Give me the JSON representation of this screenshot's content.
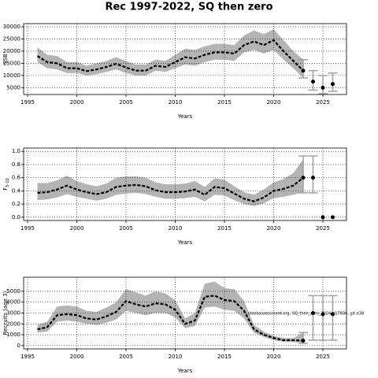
{
  "title": "Rec 1997-2022, SQ then zero",
  "footnote": "stockassessment.org, SQ_then_zero_2024, r17934, git:e38",
  "chart_data": [
    {
      "type": "line",
      "ylabel": "SSB",
      "xlabel": "Years",
      "grid": true,
      "line_color": "#000000",
      "band_color": "#b4b4b4",
      "bar_color": "#a0a0a0",
      "xlim": [
        1994.6,
        2027.4
      ],
      "xticks": [
        1995,
        2000,
        2005,
        2010,
        2015,
        2020,
        2025
      ],
      "ylim": [
        2200,
        31300
      ],
      "yticks": [
        5000,
        10000,
        15000,
        20000,
        25000,
        30000
      ],
      "x": [
        1996,
        1997,
        1998,
        1999,
        2000,
        2001,
        2002,
        2003,
        2004,
        2005,
        2006,
        2007,
        2008,
        2009,
        2010,
        2011,
        2012,
        2013,
        2014,
        2015,
        2016,
        2017,
        2018,
        2019,
        2020,
        2021,
        2022,
        2023
      ],
      "values": [
        18000,
        15500,
        15000,
        13000,
        13000,
        11800,
        12500,
        13500,
        14800,
        13300,
        12000,
        12000,
        14000,
        13500,
        15500,
        17500,
        17000,
        18500,
        19500,
        19500,
        19000,
        22500,
        24000,
        22500,
        24500,
        20000,
        16000,
        12000
      ],
      "upper": [
        21500,
        18500,
        18000,
        15500,
        15500,
        14000,
        15000,
        16000,
        17500,
        16000,
        14500,
        14500,
        16500,
        16000,
        18500,
        21000,
        20500,
        22000,
        23000,
        23000,
        22500,
        26500,
        28500,
        27000,
        29000,
        24500,
        20000,
        16500
      ],
      "lower": [
        15500,
        13000,
        12500,
        11000,
        11000,
        10000,
        10500,
        11500,
        12500,
        11000,
        10000,
        10000,
        12000,
        11500,
        13000,
        14500,
        14000,
        15500,
        16500,
        16500,
        16000,
        19500,
        20500,
        19000,
        20500,
        16500,
        13000,
        9000
      ],
      "projection": {
        "x": [
          2023,
          2024,
          2025,
          2026
        ],
        "values": [
          12000,
          7500,
          5000,
          6500
        ],
        "lower": [
          9000,
          4000,
          2500,
          3500
        ],
        "upper": [
          16500,
          12000,
          10000,
          11000
        ]
      }
    },
    {
      "type": "line",
      "ylabel": "F",
      "ylabel_sub": "5-10",
      "xlabel": "Years",
      "grid": true,
      "line_color": "#000000",
      "band_color": "#b4b4b4",
      "bar_color": "#a0a0a0",
      "xlim": [
        1994.6,
        2027.4
      ],
      "xticks": [
        1995,
        2000,
        2005,
        2010,
        2015,
        2020,
        2025
      ],
      "ylim": [
        -0.05,
        1.05
      ],
      "yticks": [
        {
          "value": 0,
          "label": "0.0"
        },
        0.2,
        0.4,
        0.6,
        0.8,
        {
          "value": 1,
          "label": "1.0"
        }
      ],
      "x": [
        1996,
        1997,
        1998,
        1999,
        2000,
        2001,
        2002,
        2003,
        2004,
        2005,
        2006,
        2007,
        2008,
        2009,
        2010,
        2011,
        2012,
        2013,
        2014,
        2015,
        2016,
        2017,
        2018,
        2019,
        2020,
        2021,
        2022,
        2023
      ],
      "values": [
        0.37,
        0.38,
        0.42,
        0.48,
        0.42,
        0.38,
        0.35,
        0.38,
        0.46,
        0.48,
        0.49,
        0.47,
        0.41,
        0.38,
        0.38,
        0.39,
        0.42,
        0.34,
        0.46,
        0.44,
        0.36,
        0.28,
        0.24,
        0.3,
        0.4,
        0.43,
        0.48,
        0.6
      ],
      "upper": [
        0.52,
        0.52,
        0.56,
        0.63,
        0.55,
        0.5,
        0.47,
        0.51,
        0.6,
        0.62,
        0.62,
        0.6,
        0.53,
        0.5,
        0.5,
        0.51,
        0.55,
        0.46,
        0.59,
        0.57,
        0.47,
        0.38,
        0.34,
        0.42,
        0.53,
        0.58,
        0.67,
        0.88
      ],
      "lower": [
        0.26,
        0.27,
        0.3,
        0.35,
        0.31,
        0.28,
        0.25,
        0.28,
        0.34,
        0.36,
        0.37,
        0.35,
        0.31,
        0.28,
        0.28,
        0.29,
        0.31,
        0.24,
        0.34,
        0.33,
        0.26,
        0.2,
        0.17,
        0.21,
        0.29,
        0.31,
        0.34,
        0.38
      ],
      "projection": {
        "x": [
          2023,
          2024,
          2025,
          2026
        ],
        "values": [
          0.6,
          0.6,
          0,
          0
        ],
        "lower": [
          0.37,
          0.37,
          0,
          0
        ],
        "upper": [
          0.93,
          0.93,
          0,
          0
        ]
      }
    },
    {
      "type": "line",
      "ylabel": "Recruits (age 3)",
      "xlabel": "Years",
      "grid": true,
      "line_color": "#000000",
      "band_color": "#b4b4b4",
      "bar_color": "#a0a0a0",
      "xlim": [
        1994.6,
        2027.4
      ],
      "xticks": [
        1995,
        2000,
        2005,
        2010,
        2015,
        2020,
        2025
      ],
      "ylim": [
        -300,
        6300
      ],
      "yticks": [
        0,
        1000,
        2000,
        3000,
        4000,
        5000
      ],
      "x": [
        1996,
        1997,
        1998,
        1999,
        2000,
        2001,
        2002,
        2003,
        2004,
        2005,
        2006,
        2007,
        2008,
        2009,
        2010,
        2011,
        2012,
        2013,
        2014,
        2015,
        2016,
        2017,
        2018,
        2019,
        2020,
        2021,
        2022,
        2023
      ],
      "values": [
        1500,
        1700,
        2800,
        2900,
        2800,
        2500,
        2400,
        2700,
        3100,
        4100,
        3800,
        3600,
        3900,
        3800,
        3300,
        2000,
        2300,
        4500,
        4600,
        4200,
        4100,
        3200,
        1500,
        1000,
        700,
        500,
        500,
        450
      ],
      "upper": [
        1900,
        2200,
        3600,
        3700,
        3600,
        3200,
        3100,
        3500,
        4000,
        5200,
        4900,
        4600,
        5000,
        4800,
        4200,
        2500,
        3000,
        5700,
        5900,
        5300,
        5200,
        4100,
        1900,
        1300,
        900,
        700,
        700,
        1200
      ],
      "lower": [
        1200,
        1300,
        2200,
        2300,
        2200,
        2000,
        1900,
        2100,
        2400,
        3200,
        3000,
        2800,
        3000,
        3000,
        2600,
        1600,
        1800,
        3500,
        3600,
        3300,
        3200,
        2500,
        1200,
        800,
        500,
        350,
        330,
        250
      ],
      "projection": {
        "x": [
          2023,
          2024,
          2025,
          2026
        ],
        "values": [
          450,
          3000,
          2900,
          2900
        ],
        "lower": [
          200,
          500,
          500,
          500
        ],
        "upper": [
          1200,
          4600,
          4600,
          4600
        ]
      }
    }
  ]
}
